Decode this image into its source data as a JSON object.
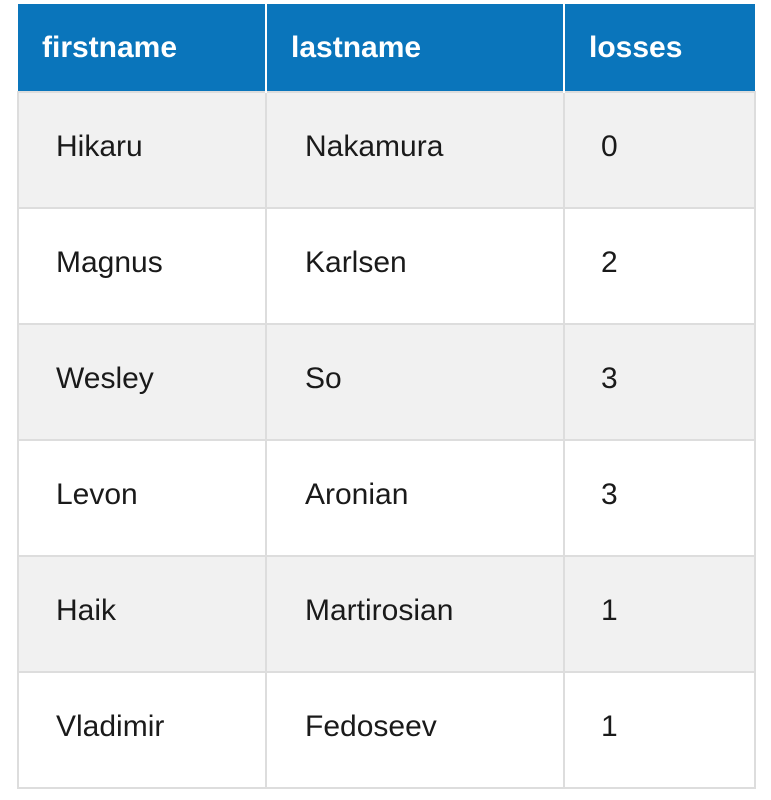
{
  "table": {
    "columns": [
      "firstname",
      "lastname",
      "losses"
    ],
    "rows": [
      [
        "Hikaru",
        "Nakamura",
        "0"
      ],
      [
        "Magnus",
        "Karlsen",
        "2"
      ],
      [
        "Wesley",
        "So",
        "3"
      ],
      [
        "Levon",
        "Aronian",
        "3"
      ],
      [
        "Haik",
        "Martirosian",
        "1"
      ],
      [
        "Vladimir",
        "Fedoseev",
        "1"
      ]
    ]
  },
  "colors": {
    "header_bg": "#0a75bb",
    "header_text": "#ffffff",
    "row_odd_bg": "#f1f1f1",
    "row_even_bg": "#ffffff",
    "border": "#dddddd"
  }
}
